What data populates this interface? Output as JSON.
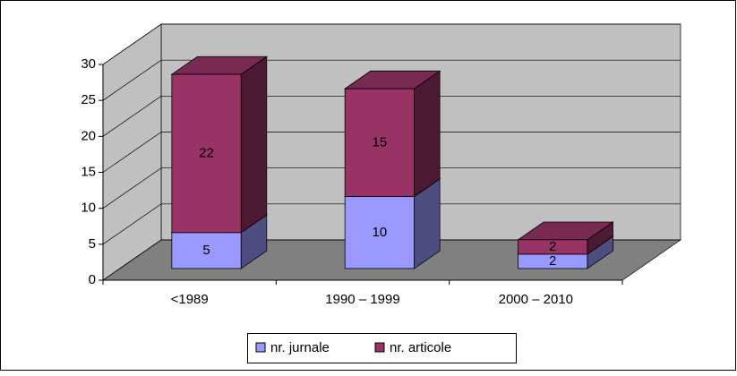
{
  "chart_data": {
    "type": "bar",
    "stacked": true,
    "categories": [
      "<1989",
      "1990 – 1999",
      "2000 – 2010"
    ],
    "series": [
      {
        "name": "nr. jurnale",
        "color": "#9999ff",
        "values": [
          5,
          10,
          2
        ]
      },
      {
        "name": "nr. articole",
        "color": "#993366",
        "values": [
          22,
          15,
          2
        ]
      }
    ],
    "ylim": [
      0,
      30
    ],
    "yticks": [
      0,
      5,
      10,
      15,
      20,
      25,
      30
    ],
    "grid": true,
    "legend": "bottom"
  }
}
